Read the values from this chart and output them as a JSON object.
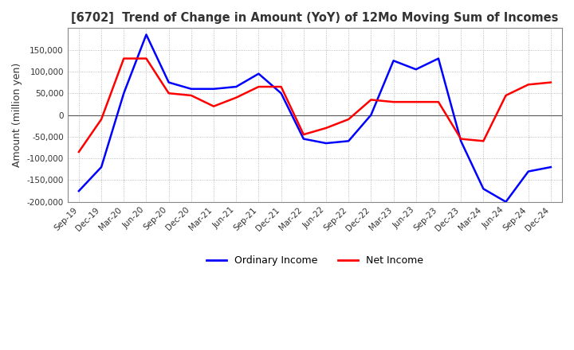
{
  "title": "[6702]  Trend of Change in Amount (YoY) of 12Mo Moving Sum of Incomes",
  "ylabel": "Amount (million yen)",
  "ylim": [
    -200000,
    200000
  ],
  "yticks": [
    -200000,
    -150000,
    -100000,
    -50000,
    0,
    50000,
    100000,
    150000
  ],
  "background_color": "#ffffff",
  "grid_color": "#aaaaaa",
  "ordinary_income_color": "#0000ff",
  "net_income_color": "#ff0000",
  "x_labels": [
    "Sep-19",
    "Dec-19",
    "Mar-20",
    "Jun-20",
    "Sep-20",
    "Dec-20",
    "Mar-21",
    "Jun-21",
    "Sep-21",
    "Dec-21",
    "Mar-22",
    "Jun-22",
    "Sep-22",
    "Dec-22",
    "Mar-23",
    "Jun-23",
    "Sep-23",
    "Dec-23",
    "Mar-24",
    "Jun-24",
    "Sep-24",
    "Dec-24"
  ],
  "ordinary_income": [
    -175000,
    -120000,
    50000,
    185000,
    75000,
    60000,
    60000,
    65000,
    95000,
    50000,
    -55000,
    -65000,
    -60000,
    0,
    125000,
    105000,
    130000,
    -60000,
    -170000,
    -200000,
    -130000,
    -120000
  ],
  "net_income": [
    -85000,
    -10000,
    130000,
    130000,
    50000,
    45000,
    20000,
    40000,
    65000,
    65000,
    -45000,
    -30000,
    -10000,
    35000,
    30000,
    30000,
    30000,
    -55000,
    -60000,
    45000,
    70000,
    75000
  ]
}
